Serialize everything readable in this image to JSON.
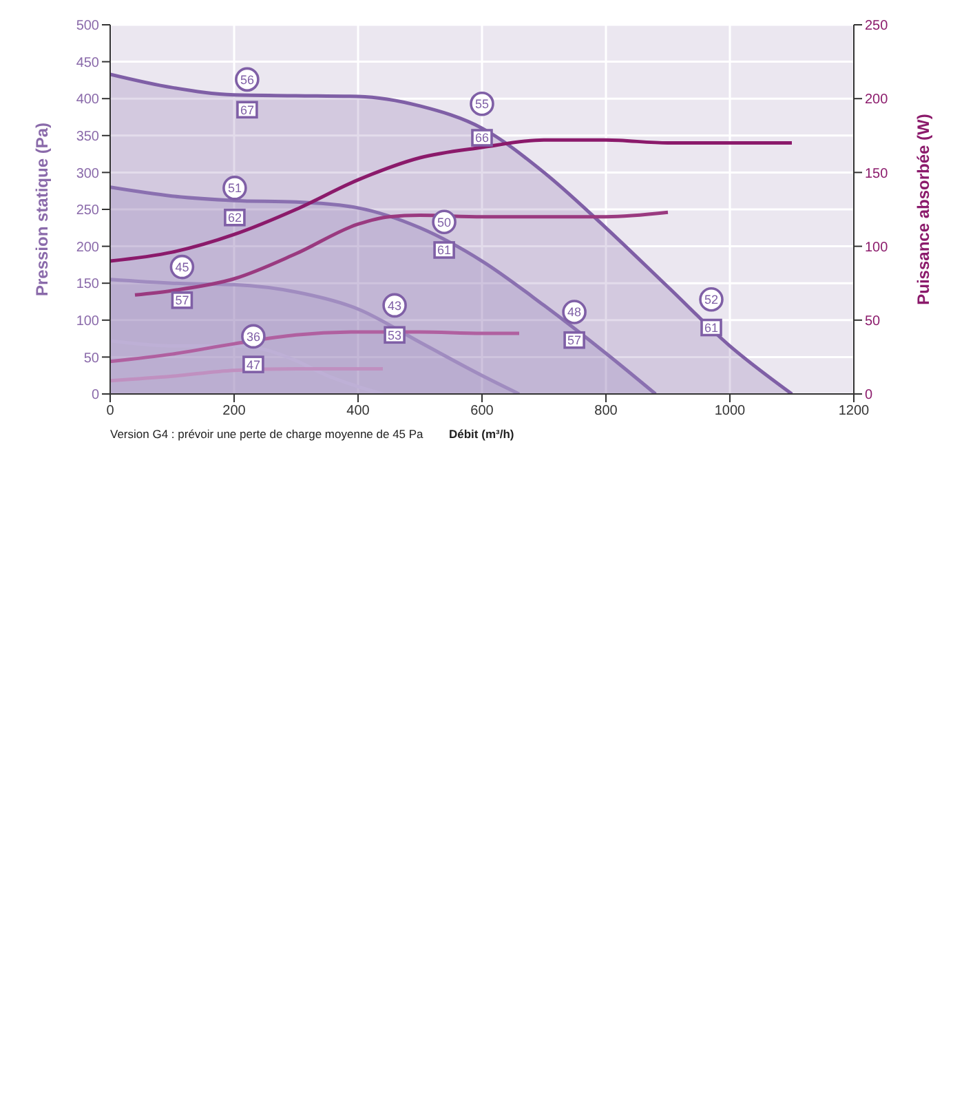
{
  "chart_data": {
    "type": "line",
    "xlabel": "Débit (m³/h)",
    "ylabel": "Pression statique (Pa)",
    "y2label": "Puissance absorbée (W)",
    "xlim": [
      0,
      1200
    ],
    "xticks": [
      0,
      200,
      400,
      600,
      800,
      1000,
      1200
    ],
    "ylim": [
      0,
      500
    ],
    "yticks": [
      0,
      50,
      100,
      150,
      200,
      250,
      300,
      350,
      400,
      450,
      500
    ],
    "y2lim": [
      0,
      250
    ],
    "y2ticks": [
      0,
      50,
      100,
      150,
      200,
      250
    ],
    "grid": true,
    "legend": false,
    "marker": "none",
    "line_style": "solid",
    "series": [
      {
        "type": "area",
        "color": "#7f5fa6",
        "x": [
          0,
          100,
          200,
          300,
          400,
          500,
          600,
          700,
          800,
          900,
          1000,
          1100
        ],
        "values": [
          433,
          415,
          405,
          404,
          403,
          390,
          360,
          300,
          225,
          145,
          65,
          0
        ]
      },
      {
        "type": "area",
        "color": "#8a70b0",
        "x": [
          0,
          100,
          200,
          300,
          400,
          500,
          600,
          700,
          800,
          880
        ],
        "values": [
          280,
          268,
          262,
          260,
          252,
          225,
          180,
          120,
          55,
          0
        ]
      },
      {
        "type": "area",
        "color": "#a08cc0",
        "x": [
          0,
          100,
          200,
          300,
          400,
          500,
          600,
          660
        ],
        "values": [
          155,
          150,
          148,
          138,
          115,
          70,
          25,
          0
        ]
      },
      {
        "type": "area",
        "color": "#beb0d6",
        "x": [
          0,
          100,
          200,
          250,
          300,
          350,
          400,
          440
        ],
        "values": [
          72,
          65,
          65,
          60,
          45,
          25,
          10,
          0
        ]
      },
      {
        "axis": "y2",
        "color": "#8b1a6b",
        "x": [
          0,
          100,
          200,
          300,
          400,
          500,
          600,
          700,
          800,
          900,
          1000,
          1100
        ],
        "values": [
          90,
          96,
          108,
          125,
          145,
          160,
          167,
          172,
          172,
          170,
          170,
          170
        ]
      },
      {
        "axis": "y2",
        "color": "#9a3a80",
        "x": [
          40,
          100,
          200,
          300,
          400,
          450,
          500,
          600,
          700,
          800,
          900
        ],
        "values": [
          67,
          70,
          78,
          95,
          115,
          120,
          121,
          120,
          120,
          120,
          123
        ]
      },
      {
        "axis": "y2",
        "color": "#b060a0",
        "x": [
          0,
          100,
          200,
          300,
          400,
          500,
          600,
          660
        ],
        "values": [
          22,
          27,
          34,
          40,
          42,
          42,
          41,
          41
        ]
      },
      {
        "axis": "y2",
        "color": "#c090c0",
        "x": [
          0,
          100,
          200,
          300,
          400,
          440
        ],
        "values": [
          9,
          12,
          16,
          17,
          17,
          17
        ]
      }
    ],
    "annotations": [
      {
        "text": "56",
        "x": 221,
        "y": 426
      },
      {
        "text": "67",
        "x": 221,
        "y": 385
      },
      {
        "text": "55",
        "x": 600,
        "y": 393
      },
      {
        "text": "66",
        "x": 600,
        "y": 347
      },
      {
        "text": "51",
        "x": 201,
        "y": 279
      },
      {
        "text": "62",
        "x": 201,
        "y": 239
      },
      {
        "text": "50",
        "x": 539,
        "y": 233
      },
      {
        "text": "61",
        "x": 539,
        "y": 195
      },
      {
        "text": "45",
        "x": 116,
        "y": 172
      },
      {
        "text": "57",
        "x": 116,
        "y": 127
      },
      {
        "text": "43",
        "x": 459,
        "y": 120
      },
      {
        "text": "53",
        "x": 459,
        "y": 80
      },
      {
        "text": "36",
        "x": 231,
        "y": 78
      },
      {
        "text": "47",
        "x": 231,
        "y": 40
      },
      {
        "text": "48",
        "x": 749,
        "y": 111
      },
      {
        "text": "57",
        "x": 749,
        "y": 73
      },
      {
        "text": "52",
        "x": 970,
        "y": 128
      },
      {
        "text": "61",
        "x": 970,
        "y": 90
      },
      "Version G4 : prévoir une perte de charge moyenne de 45 Pa"
    ]
  }
}
